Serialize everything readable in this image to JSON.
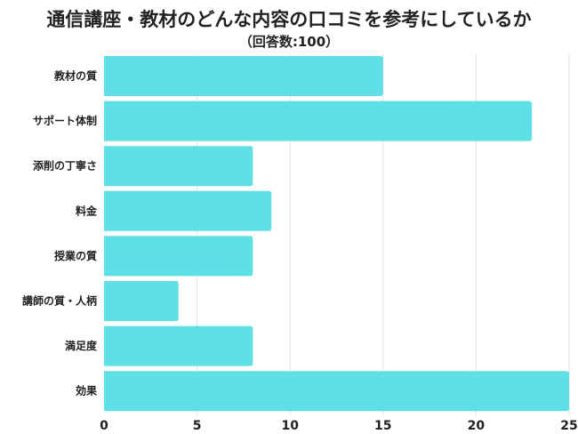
{
  "chart_data": {
    "type": "bar",
    "orientation": "horizontal",
    "title": "通信講座・教材のどんな内容の口コミを参考にしているか",
    "subtitle": "（回答数:100）",
    "categories": [
      "教材の質",
      "サポート体制",
      "添削の丁寧さ",
      "料金",
      "授業の質",
      "講師の質・人柄",
      "満足度",
      "効果"
    ],
    "values": [
      15,
      23,
      8,
      9,
      8,
      4,
      8,
      25
    ],
    "xlim": [
      0,
      25
    ],
    "xticks": [
      "0",
      "5",
      "10",
      "15",
      "20",
      "25"
    ],
    "grid": true,
    "bar_color": "#5ee0e6"
  }
}
